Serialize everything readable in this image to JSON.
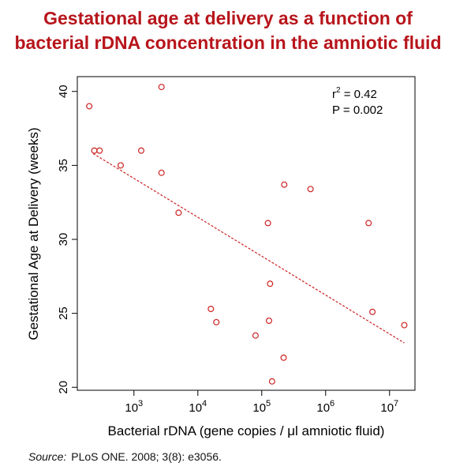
{
  "title_lines": [
    "Gestational age at delivery as a function of",
    "bacterial rDNA concentration in the amniotic fluid"
  ],
  "source": {
    "label": "Source:",
    "text": "PLoS ONE. 2008; 3(8): e3056."
  },
  "colors": {
    "title": "#b7151b",
    "points": "#cc2222",
    "trend": "#cc2222",
    "axis": "#000000"
  },
  "chart_data": {
    "type": "scatter",
    "xscale": "log",
    "xlabel": "Bacterial rDNA  (gene copies / μl amniotic fluid)",
    "ylabel": "Gestational Age at Delivery  (weeks)",
    "xlim": [
      130,
      25000000
    ],
    "ylim": [
      19.8,
      41.0
    ],
    "x_ticks": [
      {
        "value": 1000,
        "base": "10",
        "exp": "3"
      },
      {
        "value": 10000,
        "base": "10",
        "exp": "4"
      },
      {
        "value": 100000,
        "base": "10",
        "exp": "5"
      },
      {
        "value": 1000000,
        "base": "10",
        "exp": "6"
      },
      {
        "value": 10000000,
        "base": "10",
        "exp": "7"
      }
    ],
    "y_ticks": [
      20,
      25,
      30,
      35,
      40
    ],
    "annotations": {
      "r2_prefix": "r",
      "r2_sup": "2",
      "r2_value": " = 0.42",
      "p_text": "P = 0.002"
    },
    "points": [
      {
        "x": 200,
        "y": 39.0
      },
      {
        "x": 240,
        "y": 36.0
      },
      {
        "x": 290,
        "y": 36.0
      },
      {
        "x": 620,
        "y": 35.0
      },
      {
        "x": 1300,
        "y": 36.0
      },
      {
        "x": 2700,
        "y": 40.3
      },
      {
        "x": 2700,
        "y": 34.5
      },
      {
        "x": 5000,
        "y": 31.8
      },
      {
        "x": 16000,
        "y": 25.3
      },
      {
        "x": 19500,
        "y": 24.4
      },
      {
        "x": 80000,
        "y": 23.5
      },
      {
        "x": 125000,
        "y": 31.1
      },
      {
        "x": 130000,
        "y": 24.5
      },
      {
        "x": 135000,
        "y": 27.0
      },
      {
        "x": 145000,
        "y": 20.4
      },
      {
        "x": 225000,
        "y": 33.7
      },
      {
        "x": 220000,
        "y": 22.0
      },
      {
        "x": 580000,
        "y": 33.4
      },
      {
        "x": 4700000,
        "y": 31.1
      },
      {
        "x": 5400000,
        "y": 25.1
      },
      {
        "x": 17000000,
        "y": 24.2
      }
    ],
    "trendline": {
      "x": [
        230,
        17000000
      ],
      "y": [
        35.8,
        23.0
      ]
    }
  }
}
